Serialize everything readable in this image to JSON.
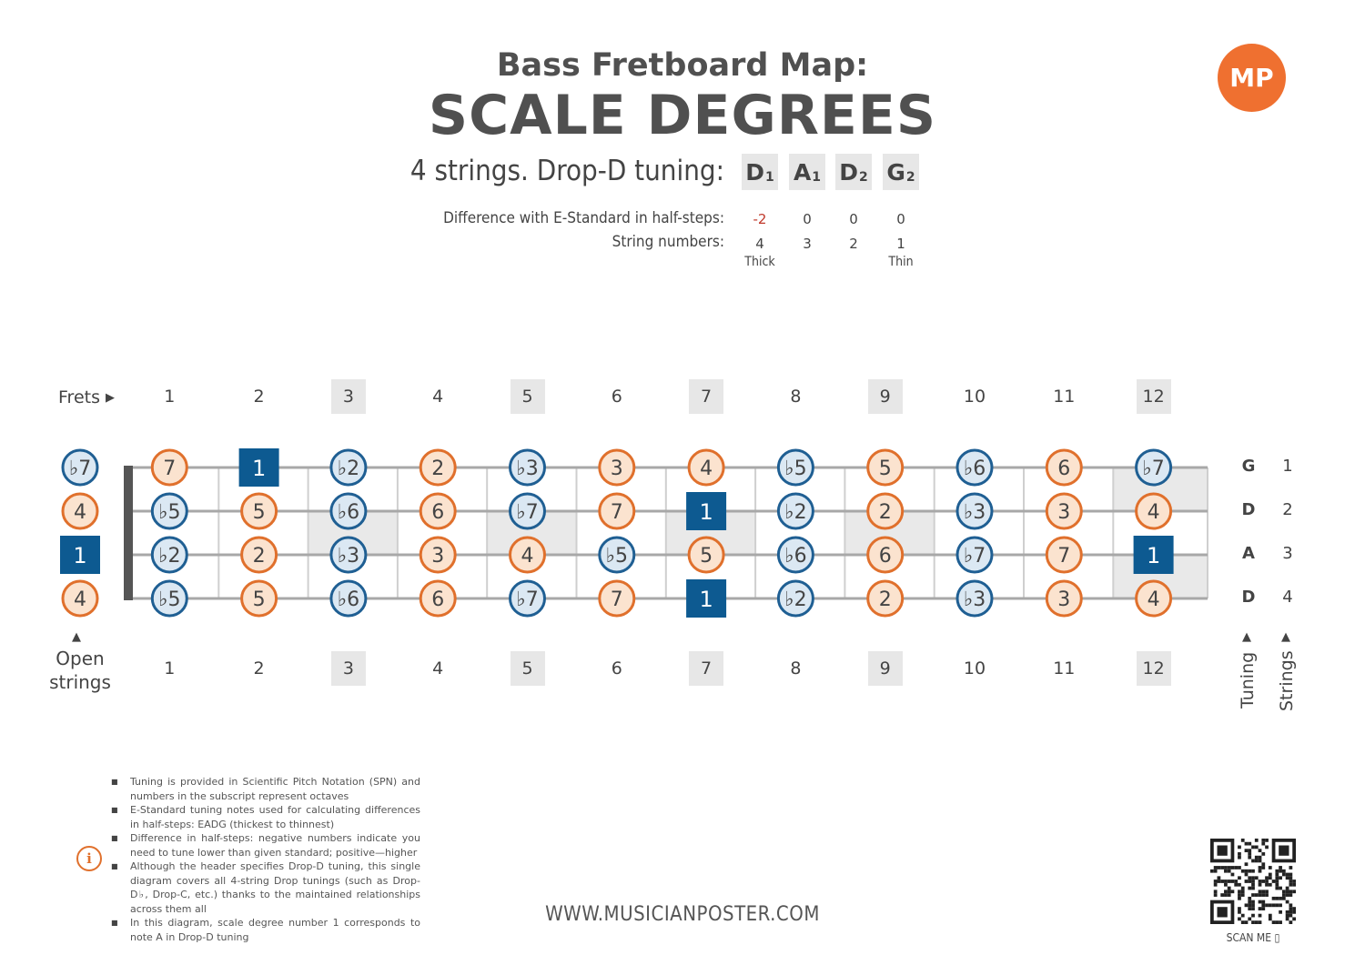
{
  "header": {
    "title_line1": "Bass Fretboard Map:",
    "title_line2": "SCALE DEGREES",
    "logo_text": "MP",
    "tuning_label": "4 strings. Drop-D tuning:",
    "tuning": [
      {
        "note": "D",
        "octave": "1"
      },
      {
        "note": "A",
        "octave": "1"
      },
      {
        "note": "D",
        "octave": "2"
      },
      {
        "note": "G",
        "octave": "2"
      }
    ],
    "diff_label": "Difference with E-Standard in half-steps:",
    "diffs": [
      "-2",
      "0",
      "0",
      "0"
    ],
    "string_numbers_label": "String numbers:",
    "string_numbers": [
      "4",
      "3",
      "2",
      "1"
    ],
    "thick_label": "Thick",
    "thin_label": "Thin"
  },
  "fretboard": {
    "frets_label": "Frets",
    "fret_numbers": [
      "1",
      "2",
      "3",
      "4",
      "5",
      "6",
      "7",
      "8",
      "9",
      "10",
      "11",
      "12"
    ],
    "marked_frets": [
      3,
      5,
      7,
      9,
      12
    ],
    "open_strings_label_line1": "Open",
    "open_strings_label_line2": "strings",
    "tuning_axis_label": "Tuning",
    "strings_axis_label": "Strings",
    "strings": [
      {
        "tuning": "G",
        "number": "1",
        "degrees": [
          "b7",
          "7",
          "1",
          "b2",
          "2",
          "b3",
          "3",
          "4",
          "b5",
          "5",
          "b6",
          "6",
          "b7"
        ]
      },
      {
        "tuning": "D",
        "number": "2",
        "degrees": [
          "4",
          "b5",
          "5",
          "b6",
          "6",
          "b7",
          "7",
          "1",
          "b2",
          "2",
          "b3",
          "3",
          "4"
        ]
      },
      {
        "tuning": "A",
        "number": "3",
        "degrees": [
          "1",
          "b2",
          "2",
          "b3",
          "3",
          "4",
          "b5",
          "5",
          "b6",
          "6",
          "b7",
          "7",
          "1"
        ]
      },
      {
        "tuning": "D",
        "number": "4",
        "degrees": [
          "4",
          "b5",
          "5",
          "b6",
          "6",
          "b7",
          "7",
          "1",
          "b2",
          "2",
          "b3",
          "3",
          "4"
        ]
      }
    ],
    "colors": {
      "natural_fill": "#fbe3cf",
      "natural_stroke": "#e0702c",
      "flat_fill": "#dbe8f3",
      "flat_stroke": "#1f5f93",
      "root_fill": "#0d5a91",
      "string_line": "#a8a8a8",
      "nut": "#555555",
      "shade": "#e9e9e9"
    }
  },
  "notes": [
    "Tuning is provided in Scientific Pitch Notation (SPN) and numbers in the subscript represent octaves",
    "E-Standard tuning notes used for calculating differences in half-steps: EADG (thickest to thinnest)",
    "Difference in half-steps: negative numbers indicate you need to tune lower than given standard; positive—higher",
    "Although the header specifies Drop-D tuning, this single diagram covers all 4-string Drop tunings (such as Drop-D♭, Drop-C, etc.) thanks to the maintained relationships across them all",
    "In this diagram, scale degree number 1 corresponds to note A in Drop-D tuning"
  ],
  "footer": {
    "website": "WWW.MUSICIANPOSTER.COM",
    "scan_me": "SCAN ME"
  }
}
